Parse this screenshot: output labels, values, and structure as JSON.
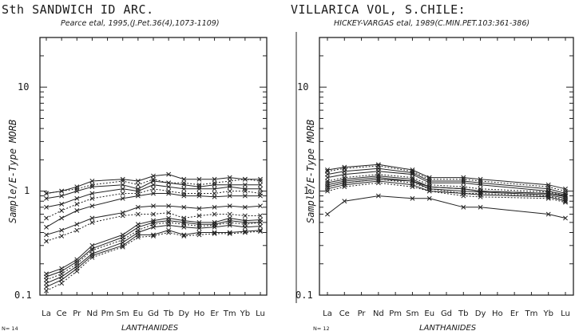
{
  "chart_data": [
    {
      "type": "line",
      "title": "Sth SANDWICH ID ARC.",
      "subtitle": "Pearce etal, 1995,(J.Pet.36(4),1073-1109)",
      "ylabel": "Sample/E-Type MORB",
      "xlabel": "LANTHANIDES",
      "n_label": "N= 14",
      "y_scale": "log",
      "ylim": [
        0.1,
        30
      ],
      "y_ticks": [
        "10",
        "1",
        "0.1"
      ],
      "categories": [
        "La",
        "Ce",
        "Pr",
        "Nd",
        "Pm",
        "Sm",
        "Eu",
        "Gd",
        "Tb",
        "Dy",
        "Ho",
        "Er",
        "Tm",
        "Yb",
        "Lu"
      ],
      "grid": false,
      "series": [
        {
          "values": [
            0.95,
            1.0,
            1.1,
            1.25,
            null,
            1.3,
            1.25,
            1.4,
            1.45,
            1.3,
            1.3,
            1.3,
            1.35,
            1.3,
            1.3
          ]
        },
        {
          "values": [
            0.95,
            1.0,
            1.05,
            1.15,
            null,
            1.25,
            1.15,
            1.3,
            1.2,
            1.2,
            1.15,
            1.2,
            1.25,
            1.3,
            1.25
          ]
        },
        {
          "values": [
            0.85,
            0.9,
            1.0,
            1.1,
            null,
            1.15,
            1.05,
            1.25,
            1.2,
            1.15,
            1.1,
            1.15,
            1.15,
            1.15,
            1.15
          ]
        },
        {
          "values": [
            0.7,
            0.75,
            0.85,
            0.95,
            null,
            1.05,
            1.0,
            1.15,
            1.1,
            1.05,
            1.05,
            1.05,
            1.1,
            1.05,
            1.05
          ]
        },
        {
          "values": [
            0.55,
            0.65,
            0.75,
            0.85,
            null,
            0.95,
            0.95,
            1.05,
            1.0,
            0.95,
            0.95,
            0.95,
            1.0,
            1.0,
            0.95
          ]
        },
        {
          "values": [
            0.45,
            0.55,
            0.65,
            0.72,
            null,
            0.85,
            0.9,
            0.95,
            0.95,
            0.9,
            0.9,
            0.88,
            0.9,
            0.9,
            0.9
          ]
        },
        {
          "values": [
            0.38,
            0.42,
            0.48,
            0.55,
            null,
            0.62,
            0.7,
            0.72,
            0.72,
            0.7,
            0.68,
            0.7,
            0.72,
            0.7,
            0.72
          ]
        },
        {
          "values": [
            0.33,
            0.37,
            0.42,
            0.5,
            null,
            0.58,
            0.6,
            0.6,
            0.62,
            0.55,
            0.58,
            0.6,
            0.6,
            0.58,
            0.58
          ]
        },
        {
          "values": [
            0.16,
            0.18,
            0.22,
            0.3,
            null,
            0.38,
            0.48,
            0.52,
            0.55,
            0.52,
            0.5,
            0.5,
            0.55,
            0.52,
            0.53
          ]
        },
        {
          "values": [
            0.15,
            0.17,
            0.21,
            0.28,
            null,
            0.36,
            0.45,
            0.5,
            0.52,
            0.5,
            0.48,
            0.48,
            0.52,
            0.5,
            0.5
          ]
        },
        {
          "values": [
            0.14,
            0.16,
            0.2,
            0.27,
            null,
            0.34,
            0.42,
            0.48,
            0.5,
            0.48,
            0.46,
            0.47,
            0.5,
            0.48,
            0.5
          ]
        },
        {
          "values": [
            0.13,
            0.15,
            0.19,
            0.25,
            null,
            0.32,
            0.4,
            0.45,
            0.47,
            0.45,
            0.44,
            0.45,
            0.47,
            0.45,
            0.46
          ]
        },
        {
          "values": [
            0.12,
            0.14,
            0.18,
            0.24,
            null,
            0.3,
            0.38,
            0.38,
            0.42,
            0.38,
            0.4,
            0.4,
            0.4,
            0.41,
            0.42
          ]
        },
        {
          "values": [
            0.11,
            0.13,
            0.17,
            0.23,
            null,
            0.29,
            0.36,
            0.37,
            0.4,
            0.37,
            0.38,
            0.39,
            0.39,
            0.4,
            0.41
          ]
        }
      ]
    },
    {
      "type": "line",
      "title": "VILLARICA VOL, S.CHILE:",
      "subtitle": "HICKEY-VARGAS etal, 1989(C.MIN.PET.103:361-386)",
      "ylabel": "Sample/E-Type MORB",
      "xlabel": "LANTHANIDES",
      "n_label": "N= 12",
      "y_scale": "log",
      "ylim": [
        0.1,
        30
      ],
      "y_ticks": [
        "10",
        "1",
        "0.1"
      ],
      "categories": [
        "La",
        "Ce",
        "Pr",
        "Nd",
        "Pm",
        "Sm",
        "Eu",
        "Gd",
        "Tb",
        "Dy",
        "Ho",
        "Er",
        "Tm",
        "Yb",
        "Lu"
      ],
      "grid": false,
      "series": [
        {
          "values": [
            1.6,
            1.7,
            null,
            1.8,
            null,
            1.6,
            1.35,
            null,
            1.35,
            1.3,
            null,
            null,
            null,
            1.15,
            1.05
          ]
        },
        {
          "values": [
            1.55,
            1.65,
            null,
            1.75,
            null,
            1.55,
            1.3,
            null,
            1.3,
            1.25,
            null,
            null,
            null,
            1.1,
            1.0
          ]
        },
        {
          "values": [
            1.45,
            1.55,
            null,
            1.65,
            null,
            1.5,
            1.25,
            null,
            1.25,
            1.2,
            null,
            null,
            null,
            1.05,
            0.95
          ]
        },
        {
          "values": [
            1.35,
            1.45,
            null,
            1.55,
            null,
            1.45,
            1.2,
            null,
            1.2,
            1.15,
            null,
            null,
            null,
            1.0,
            0.92
          ]
        },
        {
          "values": [
            1.25,
            1.35,
            null,
            1.45,
            null,
            1.35,
            1.15,
            null,
            1.1,
            1.05,
            null,
            null,
            null,
            0.98,
            0.9
          ]
        },
        {
          "values": [
            1.2,
            1.3,
            null,
            1.4,
            null,
            1.3,
            1.1,
            null,
            1.05,
            1.0,
            null,
            null,
            null,
            0.95,
            0.88
          ]
        },
        {
          "values": [
            1.15,
            1.25,
            null,
            1.35,
            null,
            1.25,
            1.05,
            null,
            1.0,
            0.98,
            null,
            null,
            null,
            0.92,
            0.85
          ]
        },
        {
          "values": [
            1.1,
            1.2,
            null,
            1.3,
            null,
            1.2,
            1.05,
            null,
            0.95,
            0.95,
            null,
            null,
            null,
            0.9,
            0.82
          ]
        },
        {
          "values": [
            1.05,
            1.15,
            null,
            1.25,
            null,
            1.15,
            1.0,
            null,
            0.95,
            0.92,
            null,
            null,
            null,
            0.88,
            0.8
          ]
        },
        {
          "values": [
            1.1,
            1.2,
            null,
            1.3,
            null,
            1.25,
            1.1,
            null,
            1.05,
            1.0,
            null,
            null,
            null,
            0.95,
            0.9
          ]
        },
        {
          "values": [
            1.0,
            1.1,
            null,
            1.2,
            null,
            1.1,
            1.0,
            null,
            0.9,
            0.88,
            null,
            null,
            null,
            0.85,
            0.78
          ]
        },
        {
          "values": [
            0.6,
            0.8,
            null,
            0.9,
            null,
            0.85,
            0.85,
            null,
            0.7,
            0.7,
            null,
            null,
            null,
            0.6,
            0.55
          ]
        }
      ]
    }
  ]
}
